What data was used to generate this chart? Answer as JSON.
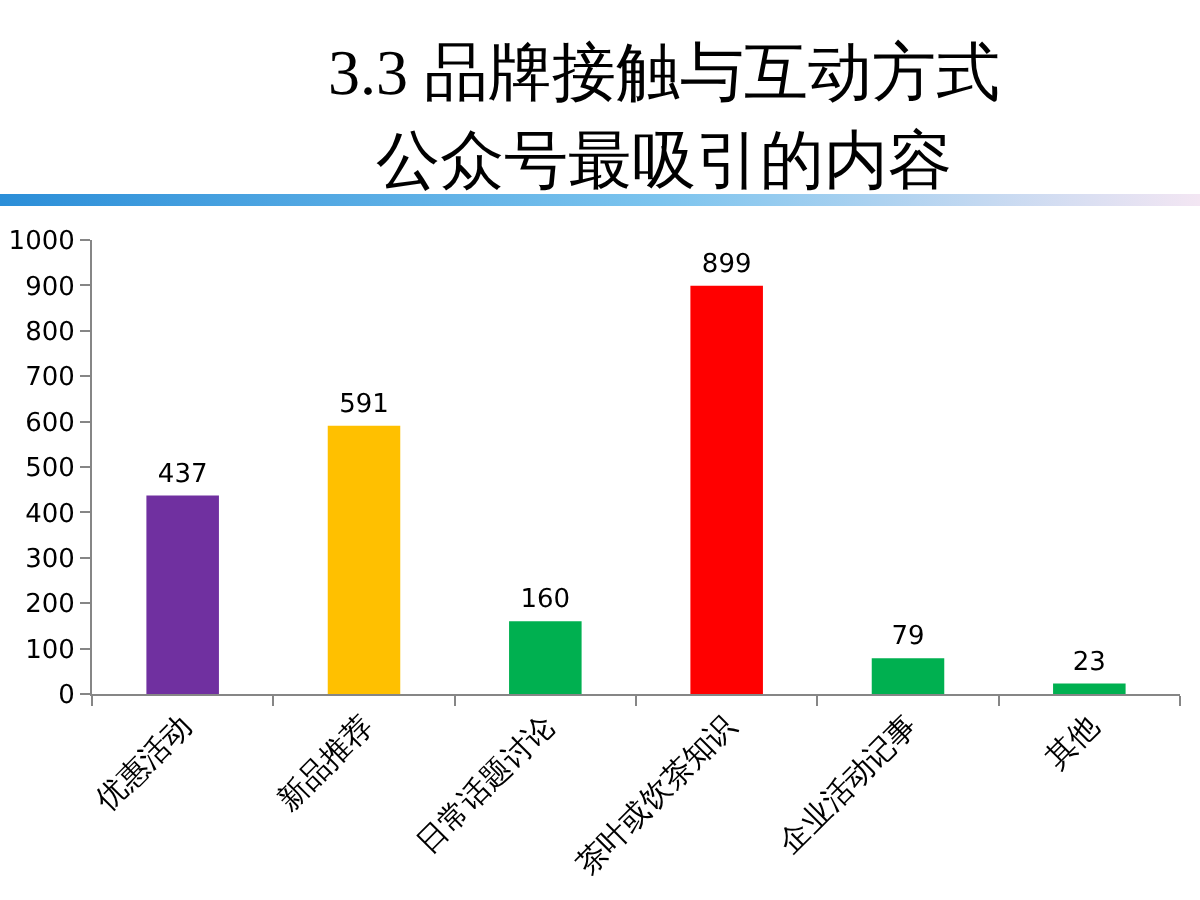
{
  "chart_data": {
    "type": "bar",
    "title": "3.3 品牌接触与互动方式",
    "subtitle": "公众号最吸引的内容",
    "categories": [
      "优惠活动",
      "新品推荐",
      "日常话题讨论",
      "茶叶或饮茶知识",
      "企业活动记事",
      "其他"
    ],
    "values": [
      437,
      591,
      160,
      899,
      79,
      23
    ],
    "colors": [
      "#7030a0",
      "#ffc000",
      "#00b050",
      "#ff0000",
      "#00b050",
      "#00b050"
    ],
    "ylim": [
      0,
      1000
    ],
    "yticks": [
      0,
      100,
      200,
      300,
      400,
      500,
      600,
      700,
      800,
      900,
      1000
    ],
    "data_labels": true
  }
}
